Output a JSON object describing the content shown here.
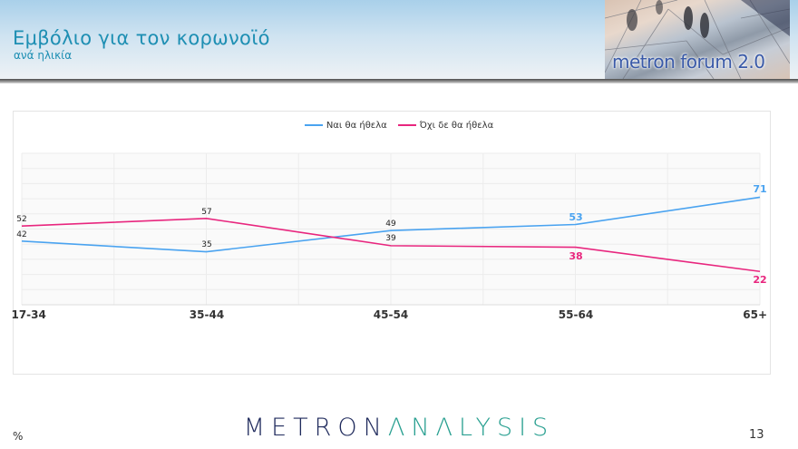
{
  "header": {
    "title": "Εμβόλιο για τον κορωνοϊό",
    "subtitle": "ανά ηλικία",
    "brand_badge": "metron forum 2.0"
  },
  "legend": {
    "yes_label": "Ναι θα ήθελα",
    "no_label": "Όχι δε θα ήθελα"
  },
  "colors": {
    "yes": "#4aa3f0",
    "no": "#e8267e",
    "title": "#1e8fb3",
    "logo_dark": "#1f2a5c",
    "logo_teal": "#2aa091"
  },
  "chart_data": {
    "type": "line",
    "title": "Εμβόλιο για τον κορωνοϊό",
    "subtitle": "ανά ηλικία",
    "xlabel": "",
    "ylabel": "%",
    "categories": [
      "17-34",
      "35-44",
      "45-54",
      "55-64",
      "65+"
    ],
    "series": [
      {
        "name": "Ναι θα ήθελα",
        "color": "#4aa3f0",
        "values": [
          42,
          35,
          49,
          53,
          71
        ]
      },
      {
        "name": "Όχι δε θα ήθελα",
        "color": "#e8267e",
        "values": [
          52,
          57,
          39,
          38,
          22
        ]
      }
    ],
    "ylim": [
      0,
      100
    ],
    "grid": true,
    "legend_position": "top"
  },
  "x_labels": [
    "17-34",
    "35-44",
    "45-54",
    "55-64",
    "65+"
  ],
  "data_labels": {
    "yes": [
      "42",
      "35",
      "49",
      "53",
      "71"
    ],
    "no": [
      "52",
      "57",
      "39",
      "38",
      "22"
    ]
  },
  "footer": {
    "unit": "%",
    "logo_part1": "METRON",
    "logo_part2": "ΛNΛLYSIS",
    "page_number": "13"
  }
}
